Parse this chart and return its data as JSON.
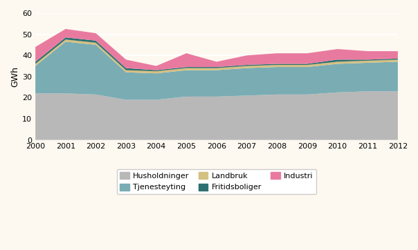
{
  "years": [
    2000,
    2001,
    2002,
    2003,
    2004,
    2005,
    2006,
    2007,
    2008,
    2009,
    2010,
    2011,
    2012
  ],
  "husholdninger": [
    22.0,
    22.0,
    21.5,
    19.0,
    19.0,
    20.5,
    20.5,
    21.0,
    21.5,
    21.5,
    22.5,
    23.0,
    23.0
  ],
  "tjenesteyting": [
    13.0,
    24.5,
    23.5,
    13.0,
    12.5,
    12.5,
    12.5,
    13.0,
    13.0,
    13.0,
    13.5,
    13.5,
    14.0
  ],
  "landbruk": [
    1.0,
    1.0,
    1.0,
    1.0,
    1.0,
    1.0,
    1.0,
    1.0,
    1.0,
    1.0,
    1.0,
    1.0,
    1.0
  ],
  "fritidsboliger": [
    1.0,
    1.0,
    1.0,
    1.0,
    0.5,
    0.5,
    0.5,
    0.5,
    0.5,
    0.5,
    1.0,
    0.5,
    0.5
  ],
  "industri": [
    7.0,
    4.0,
    3.5,
    4.0,
    2.0,
    6.5,
    2.5,
    4.5,
    5.0,
    5.0,
    5.0,
    4.0,
    3.5
  ],
  "color_husholdninger": "#b8b8b8",
  "color_tjenesteyting": "#7aacb4",
  "color_landbruk": "#d4c080",
  "color_fritidsboliger": "#2d7070",
  "color_industri": "#e87aa0",
  "ylim": [
    0,
    60
  ],
  "ylabel": "GWh",
  "background_color": "#fef9f0",
  "grid_color": "#ffffff"
}
